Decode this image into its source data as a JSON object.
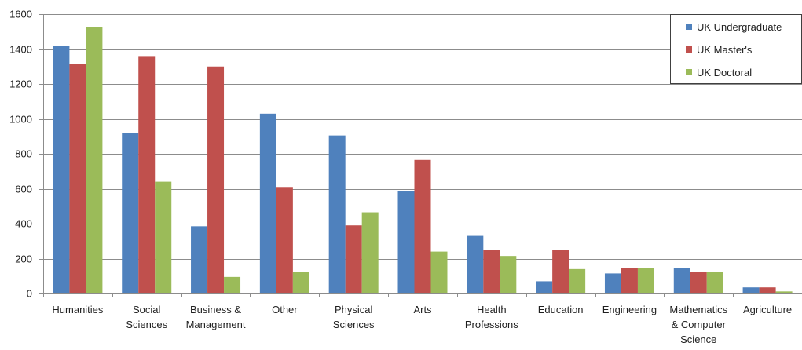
{
  "chart_data": {
    "type": "bar",
    "categories": [
      [
        "Humanities"
      ],
      [
        "Social",
        "Sciences"
      ],
      [
        "Business &",
        "Management"
      ],
      [
        "Other"
      ],
      [
        "Physical",
        "Sciences"
      ],
      [
        "Arts"
      ],
      [
        "Health",
        "Professions"
      ],
      [
        "Education"
      ],
      [
        "Engineering"
      ],
      [
        "Mathematics",
        "& Computer",
        "Science"
      ],
      [
        "Agriculture"
      ]
    ],
    "series": [
      {
        "name": "UK Undergraduate",
        "color": "#4f81bd",
        "values": [
          1420,
          920,
          385,
          1030,
          905,
          585,
          330,
          70,
          115,
          145,
          35
        ]
      },
      {
        "name": "UK Master's",
        "color": "#c0504d",
        "values": [
          1315,
          1360,
          1300,
          610,
          390,
          765,
          250,
          250,
          145,
          125,
          35
        ]
      },
      {
        "name": "UK Doctoral",
        "color": "#9bbb59",
        "values": [
          1525,
          640,
          95,
          125,
          465,
          240,
          215,
          140,
          145,
          125,
          12
        ]
      }
    ],
    "ylim": [
      0,
      1600
    ],
    "yticks": [
      0,
      200,
      400,
      600,
      800,
      1000,
      1200,
      1400,
      1600
    ],
    "grid": true,
    "legend_position": "top-right"
  }
}
